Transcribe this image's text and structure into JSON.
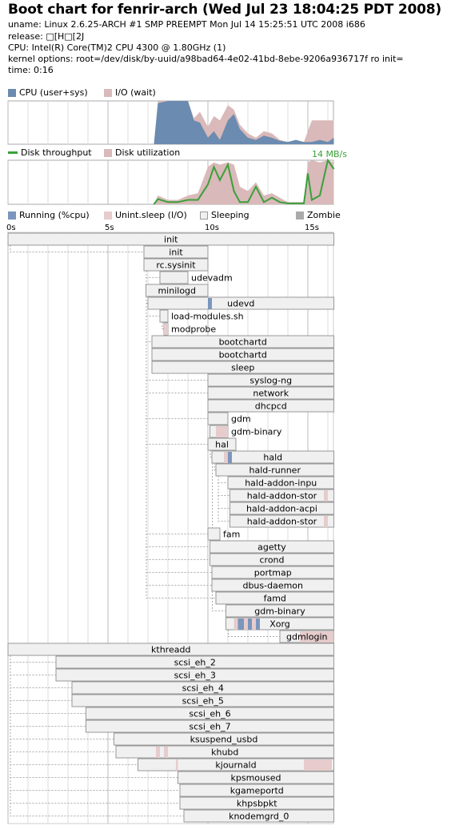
{
  "header": {
    "title": "Boot chart for fenrir-arch (Wed Jul 23 18:04:25 PDT 2008)",
    "uname": "uname: Linux 2.6.25-ARCH #1 SMP PREEMPT Mon Jul 14 15:25:51 UTC 2008 i686",
    "release": "release: □[H□[2J",
    "cpu": "CPU: Intel(R) Core(TM)2 CPU          4300  @ 1.80GHz (1)",
    "kernel_options": "kernel options: root=/dev/disk/by-uuid/a98bad64-4e02-41bd-8ebe-9206a936717f ro init=",
    "time": "time: 0:16"
  },
  "legends": {
    "cpu": "CPU (user+sys)",
    "io": "I/O (wait)",
    "disk_throughput": "Disk throughput",
    "disk_utilization": "Disk utilization",
    "throughput_peak": "14 MB/s",
    "running": "Running (%cpu)",
    "unint_sleep": "Unint.sleep (I/O)",
    "sleeping": "Sleeping",
    "zombie": "Zombie"
  },
  "colors": {
    "cpu": "#6b8bb0",
    "io": "#d9b9b9",
    "disk_line": "#3aa03a",
    "sleeping_fill": "#f0f0f0",
    "box_border": "#999999",
    "running": "#7b96bd",
    "unint": "#e6cccc",
    "zombie": "#aaaaaa",
    "grid": "#dddddd"
  },
  "chart_data": [
    {
      "type": "area",
      "name_legend": [
        "CPU (user+sys)",
        "I/O (wait)"
      ],
      "x_unit": "s",
      "xlim": [
        0,
        16.3
      ],
      "ylim": [
        0,
        1
      ],
      "series": [
        {
          "name": "CPU (user+sys)",
          "x": [
            7.3,
            7.5,
            8.0,
            8.5,
            9.0,
            9.3,
            9.6,
            10.0,
            10.3,
            10.6,
            11.0,
            11.3,
            11.6,
            12.0,
            12.4,
            12.8,
            13.2,
            13.6,
            14.0,
            14.4,
            14.8,
            15.2,
            15.6,
            16.0,
            16.3
          ],
          "values": [
            0.0,
            0.95,
            1.0,
            1.0,
            1.0,
            0.55,
            0.5,
            0.15,
            0.3,
            0.1,
            0.55,
            0.7,
            0.35,
            0.15,
            0.1,
            0.2,
            0.15,
            0.08,
            0.05,
            0.1,
            0.05,
            0.05,
            0.1,
            0.05,
            0.15
          ]
        },
        {
          "name": "I/O (wait)",
          "x": [
            7.3,
            7.5,
            8.0,
            8.5,
            9.0,
            9.3,
            9.6,
            10.0,
            10.3,
            10.6,
            11.0,
            11.3,
            11.6,
            12.0,
            12.4,
            12.8,
            13.2,
            13.6,
            14.0,
            14.4,
            14.8,
            15.2,
            15.6,
            16.0,
            16.3
          ],
          "values": [
            0.0,
            1.0,
            1.0,
            1.0,
            1.0,
            0.6,
            0.75,
            0.4,
            0.65,
            0.55,
            0.9,
            0.8,
            0.45,
            0.25,
            0.15,
            0.3,
            0.25,
            0.1,
            0.05,
            0.1,
            0.05,
            0.55,
            0.55,
            0.55,
            0.55
          ]
        }
      ]
    },
    {
      "type": "area",
      "x_unit": "s",
      "xlim": [
        0,
        16.3
      ],
      "annotations": [
        "14 MB/s"
      ],
      "series": [
        {
          "name": "Disk utilization",
          "x": [
            7.3,
            7.5,
            8.0,
            8.5,
            9.0,
            9.5,
            10.0,
            10.3,
            10.6,
            11.0,
            11.3,
            11.6,
            12.0,
            12.4,
            12.8,
            13.2,
            13.6,
            14.0,
            14.4,
            14.8,
            15.0,
            15.2,
            15.6,
            16.0,
            16.3
          ],
          "values": [
            0.0,
            0.2,
            0.1,
            0.1,
            0.2,
            0.25,
            0.85,
            0.95,
            0.9,
            0.95,
            0.9,
            0.4,
            0.3,
            0.5,
            0.2,
            0.25,
            0.15,
            0.05,
            0.05,
            0.05,
            0.95,
            1.0,
            0.95,
            1.0,
            0.95
          ]
        },
        {
          "name": "Disk throughput",
          "x": [
            7.3,
            7.5,
            8.0,
            8.5,
            9.0,
            9.5,
            10.0,
            10.3,
            10.6,
            11.0,
            11.3,
            11.6,
            12.0,
            12.4,
            12.8,
            13.2,
            13.6,
            14.0,
            14.4,
            14.8,
            15.0,
            15.2,
            15.6,
            16.0,
            16.3
          ],
          "values": [
            0.0,
            0.12,
            0.05,
            0.05,
            0.1,
            0.1,
            0.45,
            0.85,
            0.55,
            0.9,
            0.3,
            0.05,
            0.05,
            0.4,
            0.05,
            0.15,
            0.05,
            0.02,
            0.02,
            0.02,
            0.7,
            0.1,
            0.2,
            1.0,
            0.8
          ]
        }
      ]
    },
    {
      "type": "gantt",
      "x_unit": "s",
      "xlim": [
        0,
        16.3
      ],
      "ticks": [
        {
          "value": 0,
          "label": "0s"
        },
        {
          "value": 5,
          "label": "5s"
        },
        {
          "value": 10,
          "label": "10s"
        },
        {
          "value": 15,
          "label": "15s"
        }
      ],
      "processes": [
        {
          "name": "init",
          "start": 0.0,
          "end": 16.3,
          "parent": null
        },
        {
          "name": "init",
          "start": 6.8,
          "end": 10.0,
          "parent": 0
        },
        {
          "name": "rc.sysinit",
          "start": 6.8,
          "end": 10.0,
          "parent": 1
        },
        {
          "name": "udevadm",
          "start": 7.6,
          "end": 9.0,
          "parent": 2
        },
        {
          "name": "minilogd",
          "start": 6.9,
          "end": 10.0,
          "parent": 1
        },
        {
          "name": "udevd",
          "start": 7.0,
          "end": 16.3,
          "parent": 1,
          "running": [
            [
              10.0,
              10.2
            ]
          ]
        },
        {
          "name": "load-modules.sh",
          "start": 7.6,
          "end": 8.0,
          "parent": 2
        },
        {
          "name": "modprobe",
          "start": 7.8,
          "end": 8.0,
          "parent": 6,
          "unint": [
            [
              7.8,
              8.0
            ]
          ]
        },
        {
          "name": "bootchartd",
          "start": 7.2,
          "end": 16.3,
          "parent": 2
        },
        {
          "name": "bootchartd",
          "start": 7.2,
          "end": 16.3,
          "parent": 8
        },
        {
          "name": "sleep",
          "start": 7.2,
          "end": 16.3,
          "parent": 9
        },
        {
          "name": "syslog-ng",
          "start": 10.0,
          "end": 16.3,
          "parent": 2
        },
        {
          "name": "network",
          "start": 10.0,
          "end": 16.3,
          "parent": 2
        },
        {
          "name": "dhcpcd",
          "start": 10.0,
          "end": 16.3,
          "parent": 12
        },
        {
          "name": "gdm",
          "start": 10.0,
          "end": 11.0,
          "parent": 2
        },
        {
          "name": "gdm-binary",
          "start": 10.1,
          "end": 11.0,
          "parent": 14,
          "unint": [
            [
              10.4,
              11.0
            ]
          ]
        },
        {
          "name": "hal",
          "start": 10.0,
          "end": 11.4,
          "parent": 2
        },
        {
          "name": "hald",
          "start": 10.2,
          "end": 16.3,
          "parent": 16,
          "running": [
            [
              11.0,
              11.2
            ]
          ],
          "unint": [
            [
              10.8,
              11.0
            ]
          ]
        },
        {
          "name": "hald-runner",
          "start": 10.4,
          "end": 16.3,
          "parent": 17
        },
        {
          "name": "hald-addon-inpu",
          "start": 11.0,
          "end": 16.3,
          "parent": 18
        },
        {
          "name": "hald-addon-stor",
          "start": 11.1,
          "end": 16.3,
          "parent": 18,
          "unint": [
            [
              15.8,
              16.0
            ]
          ]
        },
        {
          "name": "hald-addon-acpi",
          "start": 11.1,
          "end": 16.3,
          "parent": 18
        },
        {
          "name": "hald-addon-stor",
          "start": 11.1,
          "end": 16.3,
          "parent": 18,
          "unint": [
            [
              15.8,
              16.0
            ]
          ]
        },
        {
          "name": "fam",
          "start": 10.0,
          "end": 10.6,
          "parent": 2
        },
        {
          "name": "agetty",
          "start": 10.1,
          "end": 16.3,
          "parent": 1
        },
        {
          "name": "crond",
          "start": 10.1,
          "end": 16.3,
          "parent": 2
        },
        {
          "name": "portmap",
          "start": 10.2,
          "end": 16.3,
          "parent": 2
        },
        {
          "name": "dbus-daemon",
          "start": 10.2,
          "end": 16.3,
          "parent": 2
        },
        {
          "name": "famd",
          "start": 10.4,
          "end": 16.3,
          "parent": 2
        },
        {
          "name": "gdm-binary",
          "start": 10.9,
          "end": 16.3,
          "parent": 15
        },
        {
          "name": "Xorg",
          "start": 10.9,
          "end": 16.3,
          "parent": 29,
          "running": [
            [
              11.5,
              11.8
            ],
            [
              12.0,
              12.2
            ],
            [
              12.4,
              12.6
            ]
          ],
          "unint": [
            [
              11.3,
              11.5
            ],
            [
              11.8,
              12.0
            ],
            [
              12.2,
              12.4
            ]
          ]
        },
        {
          "name": "gdmlogin",
          "start": 13.6,
          "end": 16.3,
          "parent": 29,
          "unint": [
            [
              14.6,
              16.3
            ]
          ]
        },
        {
          "name": "kthreadd",
          "start": 0.0,
          "end": 16.3,
          "parent": null
        },
        {
          "name": "scsi_eh_2",
          "start": 2.4,
          "end": 16.3,
          "parent": 32
        },
        {
          "name": "scsi_eh_3",
          "start": 2.4,
          "end": 16.3,
          "parent": 32
        },
        {
          "name": "scsi_eh_4",
          "start": 3.2,
          "end": 16.3,
          "parent": 32
        },
        {
          "name": "scsi_eh_5",
          "start": 3.2,
          "end": 16.3,
          "parent": 32
        },
        {
          "name": "scsi_eh_6",
          "start": 3.9,
          "end": 16.3,
          "parent": 32
        },
        {
          "name": "scsi_eh_7",
          "start": 3.9,
          "end": 16.3,
          "parent": 32
        },
        {
          "name": "ksuspend_usbd",
          "start": 5.3,
          "end": 16.3,
          "parent": 32
        },
        {
          "name": "khubd",
          "start": 5.4,
          "end": 16.3,
          "parent": 32,
          "unint": [
            [
              7.4,
              7.6
            ],
            [
              7.8,
              8.0
            ]
          ]
        },
        {
          "name": "kjournald",
          "start": 6.5,
          "end": 16.3,
          "parent": 32,
          "unint": [
            [
              8.4,
              8.5
            ],
            [
              14.8,
              16.2
            ]
          ]
        },
        {
          "name": "kpsmoused",
          "start": 8.5,
          "end": 16.3,
          "parent": 32
        },
        {
          "name": "kgameportd",
          "start": 8.6,
          "end": 16.3,
          "parent": 32
        },
        {
          "name": "khpsbpkt",
          "start": 8.6,
          "end": 16.3,
          "parent": 32
        },
        {
          "name": "knodemgrd_0",
          "start": 8.8,
          "end": 16.3,
          "parent": 32
        }
      ]
    }
  ]
}
